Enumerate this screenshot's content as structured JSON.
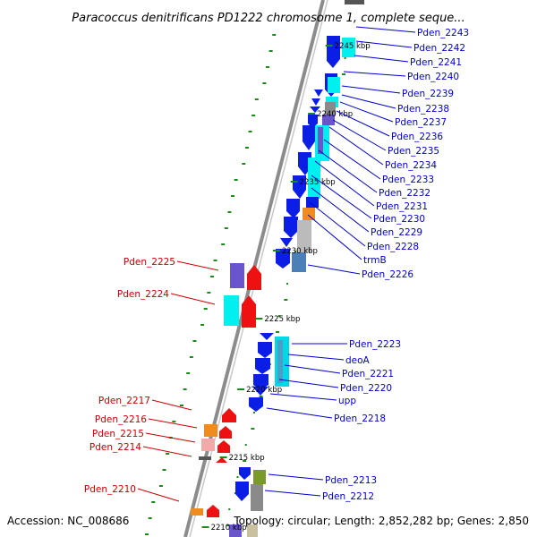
{
  "title": "Paracoccus denitrificans PD1222 chromosome 1, complete seque...",
  "footer": {
    "accession": "Accession: NC_008686",
    "summary": "Topology: circular; Length: 2,852,282 bp; Genes: 2,850"
  },
  "colors": {
    "forward_label": "#0000cc",
    "reverse_label": "#cc0000",
    "backbone": "#8c8c8c",
    "gc_tick": "#1a8a1a",
    "feature_blue": "#0a1ee6",
    "feature_cyan": "#00f0f0",
    "feature_red": "#ee1111",
    "feature_orange": "#f08c1e",
    "feature_gray": "#8a8a8a",
    "feature_purple": "#6a55cc",
    "feature_steel": "#4a7fb8",
    "feature_olive": "#7a9a2a"
  },
  "scale_marks": [
    "2245 kbp",
    "2240 kbp",
    "2235 kbp",
    "2230 kbp",
    "2225 kbp",
    "2220 kbp",
    "2215 kbp",
    "2210 kbp"
  ],
  "forward_genes": [
    "Pden_2243",
    "Pden_2242",
    "Pden_2241",
    "Pden_2240",
    "Pden_2239",
    "Pden_2238",
    "Pden_2237",
    "Pden_2236",
    "Pden_2235",
    "Pden_2234",
    "Pden_2233",
    "Pden_2232",
    "Pden_2231",
    "Pden_2230",
    "Pden_2229",
    "Pden_2228",
    "trmB",
    "Pden_2226",
    "Pden_2223",
    "deoA",
    "Pden_2221",
    "Pden_2220",
    "upp",
    "Pden_2218",
    "Pden_2213",
    "Pden_2212"
  ],
  "reverse_genes": [
    "Pden_2225",
    "Pden_2224",
    "Pden_2217",
    "Pden_2216",
    "Pden_2215",
    "Pden_2214",
    "Pden_2210"
  ]
}
